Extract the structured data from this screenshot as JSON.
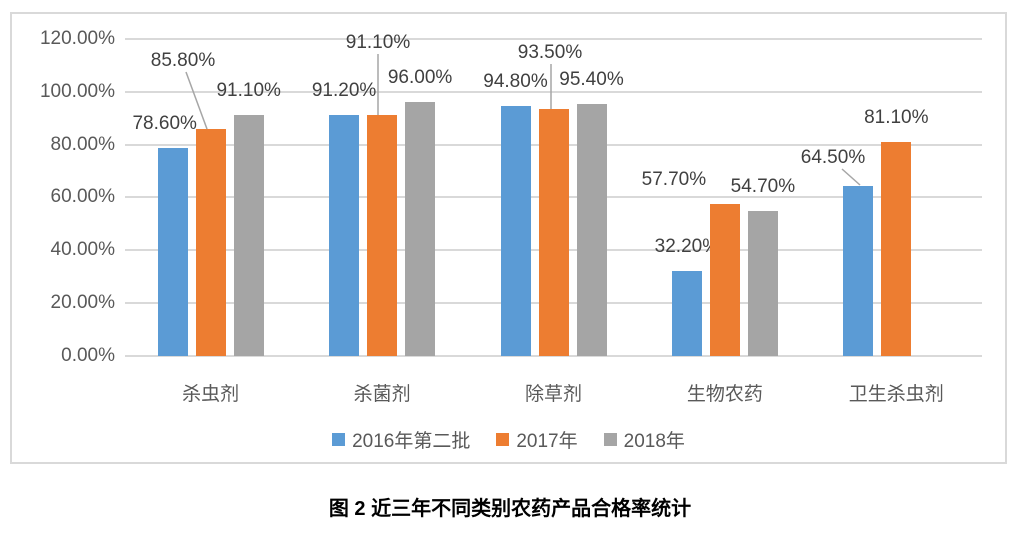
{
  "caption": "图 2  近三年不同类别农药产品合格率统计",
  "chart_data": {
    "type": "bar",
    "title": "",
    "xlabel": "",
    "ylabel": "",
    "categories": [
      "杀虫剂",
      "杀菌剂",
      "除草剂",
      "生物农药",
      "卫生杀虫剂"
    ],
    "series": [
      {
        "name": "2016年第二批",
        "color": "#5B9BD5",
        "values": [
          78.6,
          91.2,
          94.8,
          32.2,
          64.5
        ],
        "labels": [
          "78.60%",
          "91.20%",
          "94.80%",
          "32.20%",
          "64.50%"
        ]
      },
      {
        "name": "2017年",
        "color": "#ED7D31",
        "values": [
          85.8,
          91.1,
          93.5,
          57.7,
          81.1
        ],
        "labels": [
          "85.80%",
          "91.10%",
          "93.50%",
          "57.70%",
          "81.10%"
        ]
      },
      {
        "name": "2018年",
        "color": "#A5A5A5",
        "values": [
          91.1,
          96.0,
          95.4,
          54.7,
          null
        ],
        "labels": [
          "91.10%",
          "96.00%",
          "95.40%",
          "54.70%",
          null
        ]
      }
    ],
    "ylim": [
      0,
      120
    ],
    "yticks": [
      {
        "v": 0,
        "label": "0.00%"
      },
      {
        "v": 20,
        "label": "20.00%"
      },
      {
        "v": 40,
        "label": "40.00%"
      },
      {
        "v": 60,
        "label": "60.00%"
      },
      {
        "v": 80,
        "label": "80.00%"
      },
      {
        "v": 100,
        "label": "100.00%"
      },
      {
        "v": 120,
        "label": "120.00%"
      }
    ],
    "grid": true,
    "legend_position": "bottom",
    "colors": {
      "axis_text": "#595959",
      "data_label": "#404040",
      "gridline": "#D9D9D9",
      "frame": "#D9D9D9",
      "leader_line": "#A6A6A6"
    }
  }
}
